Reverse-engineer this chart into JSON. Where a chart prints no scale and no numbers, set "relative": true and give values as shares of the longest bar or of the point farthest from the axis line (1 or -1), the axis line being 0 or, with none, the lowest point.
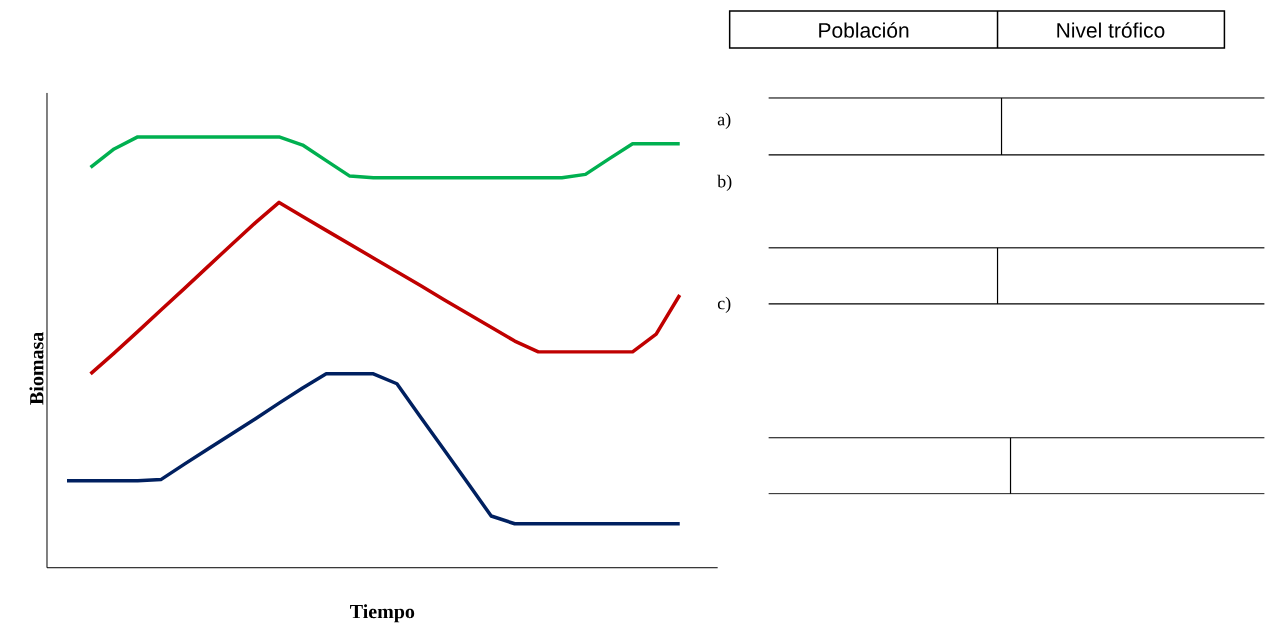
{
  "chart_data": [
    {
      "type": "line",
      "relative": true,
      "xlabel": "Tiempo",
      "ylabel": "Biomasa",
      "categories": [
        null,
        null,
        null,
        null,
        null,
        null,
        null,
        null,
        null,
        null,
        null,
        null,
        null,
        null,
        null,
        null,
        null,
        null,
        null,
        null,
        null,
        null,
        null,
        null,
        null,
        null,
        null
      ],
      "series": [
        {
          "color": "#00b050",
          "values": [
            null,
            0.929,
            0.972,
            1,
            1,
            1,
            1,
            1,
            1,
            1,
            0.981,
            0.945,
            0.909,
            0.905,
            0.905,
            0.905,
            0.905,
            0.905,
            0.905,
            0.905,
            0.905,
            0.905,
            0.913,
            0.949,
            0.984,
            0.984,
            0.984
          ]
        },
        {
          "color": "#c00000",
          "values": [
            null,
            0.45,
            0.498,
            0.548,
            0.599,
            0.649,
            0.7,
            0.751,
            0.801,
            0.848,
            0.815,
            0.783,
            0.751,
            0.719,
            0.687,
            0.655,
            0.622,
            0.59,
            0.558,
            0.526,
            0.501,
            0.501,
            0.501,
            0.501,
            0.501,
            0.542,
            0.633
          ]
        },
        {
          "color": "#002060",
          "values": [
            0.202,
            0.202,
            0.202,
            0.202,
            0.205,
            0.241,
            0.276,
            0.311,
            0.346,
            0.382,
            0.417,
            0.45,
            0.45,
            0.45,
            0.427,
            0.35,
            0.274,
            0.197,
            0.12,
            0.102,
            0.102,
            0.102,
            0.102,
            0.102,
            0.102,
            0.102,
            0.102
          ]
        }
      ]
    },
    {
      "type": "other",
      "annotations": [
        "Población",
        "Nivel trófico",
        "a)",
        "b)",
        "c)"
      ]
    }
  ]
}
